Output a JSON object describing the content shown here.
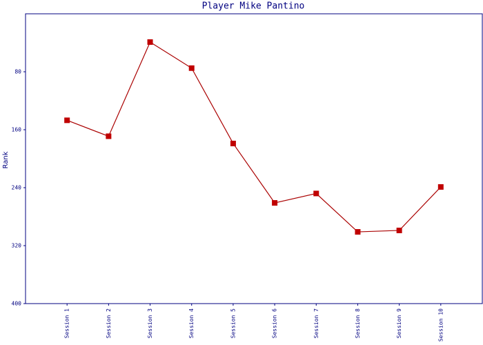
{
  "chart_data": {
    "type": "line",
    "title": "Player Mike Pantino",
    "y_label": "Rank",
    "categories": [
      "Session 1",
      "Session 2",
      "Session 3",
      "Session 4",
      "Session 5",
      "Session 6",
      "Session 7",
      "Session 8",
      "Session 9",
      "Session 10"
    ],
    "series": [
      {
        "name": "Rank",
        "color": "#aa0000",
        "marker_color": "#c00000",
        "values": [
          147,
          169,
          39,
          75,
          179,
          261,
          248,
          301,
          299,
          239
        ]
      }
    ],
    "ylim": [
      400,
      0
    ],
    "yticks": [
      80,
      160,
      240,
      320,
      400
    ],
    "inverted_y": true,
    "grid": false
  }
}
